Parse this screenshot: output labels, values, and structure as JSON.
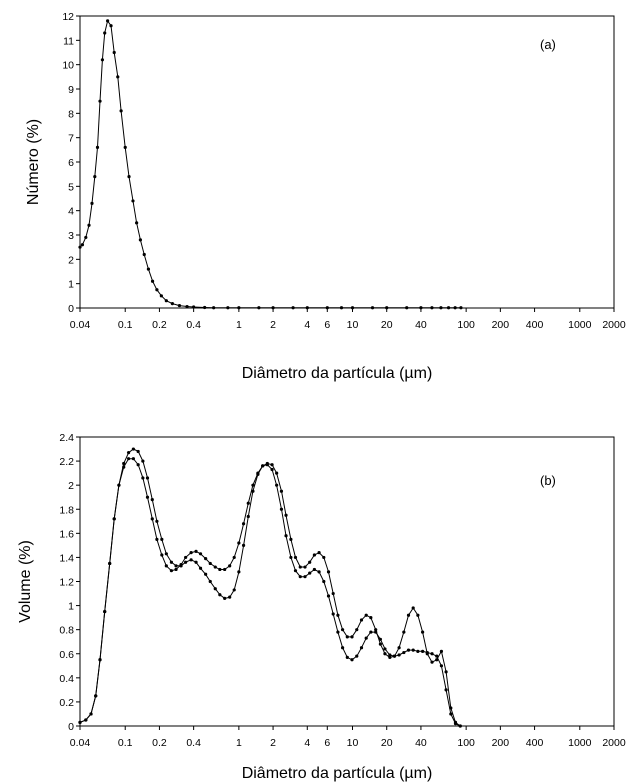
{
  "chart_data": [
    {
      "type": "line",
      "panel_label": "(a)",
      "xlabel": "Diâmetro da partícula (µm)",
      "ylabel": "Número (%)",
      "xscale": "log",
      "xlim": [
        0.04,
        2000
      ],
      "ylim": [
        0,
        12
      ],
      "grid": false,
      "x_ticks": [
        0.04,
        0.1,
        0.2,
        0.4,
        1,
        2,
        4,
        6,
        10,
        20,
        40,
        100,
        200,
        400,
        1000,
        2000
      ],
      "x_tick_labels": [
        "0.04",
        "0.1",
        "0.2",
        "0.4",
        "1",
        "2",
        "4",
        "6",
        "10",
        "20",
        "40",
        "100",
        "200",
        "400",
        "1000",
        "2000"
      ],
      "y_ticks": [
        0,
        1,
        2,
        3,
        4,
        5,
        6,
        7,
        8,
        9,
        10,
        11,
        12
      ],
      "y_tick_labels": [
        "0",
        "1",
        "2",
        "3",
        "4",
        "5",
        "6",
        "7",
        "8",
        "9",
        "10",
        "11",
        "12"
      ],
      "series": [
        {
          "x": [
            0.04,
            0.042,
            0.045,
            0.048,
            0.051,
            0.054,
            0.057,
            0.06,
            0.063,
            0.066,
            0.07,
            0.075,
            0.08,
            0.086,
            0.092,
            0.1,
            0.108,
            0.117,
            0.126,
            0.136,
            0.147,
            0.16,
            0.174,
            0.19,
            0.208,
            0.23,
            0.26,
            0.3,
            0.35,
            0.4,
            0.5,
            0.6,
            0.8,
            1,
            1.5,
            2,
            3,
            4,
            6,
            8,
            10,
            15,
            20,
            30,
            40,
            50,
            60,
            70,
            80,
            90
          ],
          "y": [
            2.5,
            2.6,
            2.9,
            3.4,
            4.3,
            5.4,
            6.6,
            8.5,
            10.2,
            11.3,
            11.8,
            11.6,
            10.5,
            9.5,
            8.1,
            6.6,
            5.4,
            4.4,
            3.5,
            2.8,
            2.2,
            1.6,
            1.1,
            0.75,
            0.5,
            0.3,
            0.18,
            0.1,
            0.06,
            0.04,
            0.02,
            0.01,
            0.01,
            0.01,
            0.01,
            0.01,
            0.01,
            0.01,
            0.01,
            0.01,
            0.01,
            0.01,
            0.01,
            0.01,
            0.01,
            0.01,
            0.01,
            0.01,
            0.01,
            0.01
          ]
        }
      ]
    },
    {
      "type": "line",
      "panel_label": "(b)",
      "xlabel": "Diâmetro da partícula (µm)",
      "ylabel": "Volume (%)",
      "xscale": "log",
      "xlim": [
        0.04,
        2000
      ],
      "ylim": [
        0,
        2.4
      ],
      "grid": false,
      "x_ticks": [
        0.04,
        0.1,
        0.2,
        0.4,
        1,
        2,
        4,
        6,
        10,
        20,
        40,
        100,
        200,
        400,
        1000,
        2000
      ],
      "x_tick_labels": [
        "0.04",
        "0.1",
        "0.2",
        "0.4",
        "1",
        "2",
        "4",
        "6",
        "10",
        "20",
        "40",
        "100",
        "200",
        "400",
        "1000",
        "2000"
      ],
      "y_ticks": [
        0,
        0.2,
        0.4,
        0.6,
        0.8,
        1,
        1.2,
        1.4,
        1.6,
        1.8,
        2,
        2.2,
        2.4
      ],
      "y_tick_labels": [
        "0",
        "0.2",
        "0.4",
        "0.6",
        "0.8",
        "1",
        "1.2",
        "1.4",
        "1.6",
        "1.8",
        "2",
        "2.2",
        "2.4"
      ],
      "series": [
        {
          "x": [
            0.04,
            0.045,
            0.05,
            0.055,
            0.06,
            0.066,
            0.073,
            0.08,
            0.088,
            0.097,
            0.107,
            0.118,
            0.13,
            0.143,
            0.157,
            0.173,
            0.19,
            0.21,
            0.23,
            0.255,
            0.28,
            0.31,
            0.34,
            0.38,
            0.42,
            0.46,
            0.51,
            0.56,
            0.62,
            0.68,
            0.75,
            0.83,
            0.91,
            1.0,
            1.1,
            1.21,
            1.33,
            1.47,
            1.62,
            1.78,
            1.96,
            2.15,
            2.37,
            2.6,
            2.87,
            3.15,
            3.47,
            3.82,
            4.2,
            4.62,
            5.08,
            5.59,
            6.15,
            6.76,
            7.44,
            8.18,
            9.0,
            9.9,
            10.9,
            12.0,
            13.2,
            14.5,
            16.0,
            17.6,
            19.3,
            21.3,
            23.4,
            25.7,
            28.3,
            31.1,
            34.2,
            37.6,
            41.4,
            45.5,
            50.1,
            55.1,
            60.6,
            66.6,
            73.3,
            80.6,
            88.7
          ],
          "y": [
            0.03,
            0.05,
            0.1,
            0.25,
            0.55,
            0.95,
            1.35,
            1.72,
            2.0,
            2.18,
            2.27,
            2.3,
            2.28,
            2.2,
            2.06,
            1.88,
            1.7,
            1.55,
            1.43,
            1.36,
            1.33,
            1.33,
            1.36,
            1.38,
            1.36,
            1.31,
            1.26,
            1.2,
            1.14,
            1.09,
            1.06,
            1.07,
            1.13,
            1.28,
            1.5,
            1.74,
            1.95,
            2.09,
            2.16,
            2.17,
            2.13,
            2.0,
            1.8,
            1.58,
            1.4,
            1.29,
            1.24,
            1.24,
            1.27,
            1.3,
            1.28,
            1.2,
            1.08,
            0.93,
            0.78,
            0.65,
            0.57,
            0.55,
            0.58,
            0.65,
            0.73,
            0.78,
            0.78,
            0.72,
            0.64,
            0.59,
            0.58,
            0.59,
            0.61,
            0.63,
            0.63,
            0.62,
            0.62,
            0.61,
            0.6,
            0.58,
            0.5,
            0.3,
            0.1,
            0.02,
            0.0
          ]
        },
        {
          "x": [
            0.04,
            0.045,
            0.05,
            0.055,
            0.06,
            0.066,
            0.073,
            0.08,
            0.088,
            0.097,
            0.107,
            0.118,
            0.13,
            0.143,
            0.157,
            0.173,
            0.19,
            0.21,
            0.23,
            0.255,
            0.28,
            0.31,
            0.34,
            0.38,
            0.42,
            0.46,
            0.51,
            0.56,
            0.62,
            0.68,
            0.75,
            0.83,
            0.91,
            1.0,
            1.1,
            1.21,
            1.33,
            1.47,
            1.62,
            1.78,
            1.96,
            2.15,
            2.37,
            2.6,
            2.87,
            3.15,
            3.47,
            3.82,
            4.2,
            4.62,
            5.08,
            5.59,
            6.15,
            6.76,
            7.44,
            8.18,
            9.0,
            9.9,
            10.9,
            12.0,
            13.2,
            14.5,
            16.0,
            17.6,
            19.3,
            21.3,
            23.4,
            25.7,
            28.3,
            31.1,
            34.2,
            37.6,
            41.4,
            45.5,
            50.1,
            55.1,
            60.6,
            66.6,
            73.3,
            80.6,
            88.7
          ],
          "y": [
            0.03,
            0.05,
            0.1,
            0.25,
            0.55,
            0.95,
            1.35,
            1.72,
            2.0,
            2.15,
            2.22,
            2.22,
            2.17,
            2.06,
            1.9,
            1.72,
            1.55,
            1.42,
            1.33,
            1.29,
            1.3,
            1.34,
            1.4,
            1.44,
            1.45,
            1.43,
            1.39,
            1.35,
            1.32,
            1.3,
            1.3,
            1.33,
            1.4,
            1.52,
            1.68,
            1.85,
            2.0,
            2.1,
            2.16,
            2.18,
            2.17,
            2.1,
            1.95,
            1.75,
            1.55,
            1.4,
            1.32,
            1.32,
            1.36,
            1.42,
            1.44,
            1.4,
            1.28,
            1.1,
            0.92,
            0.8,
            0.74,
            0.74,
            0.8,
            0.88,
            0.92,
            0.9,
            0.8,
            0.68,
            0.6,
            0.57,
            0.58,
            0.65,
            0.78,
            0.92,
            0.98,
            0.92,
            0.78,
            0.6,
            0.53,
            0.55,
            0.62,
            0.45,
            0.15,
            0.03,
            0.0
          ]
        }
      ]
    }
  ]
}
